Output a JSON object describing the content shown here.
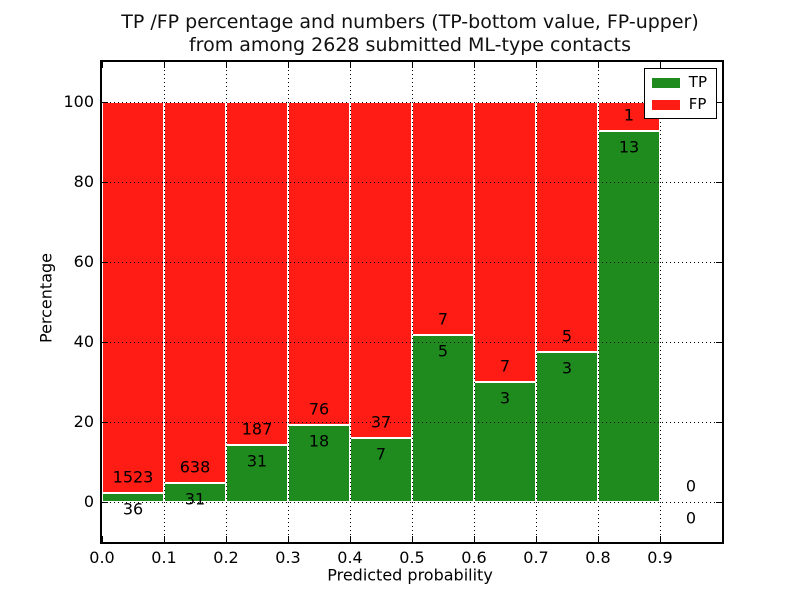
{
  "chart_data": {
    "type": "bar",
    "stacked": true,
    "title_line1": "TP /FP percentage and numbers (TP-bottom value, FP-upper)",
    "title_line2": "from among 2628 submitted ML-type contacts",
    "total_contacts": 2628,
    "xlabel": "Predicted probability",
    "ylabel": "Percentage",
    "x_ticks": [
      "0.0",
      "0.1",
      "0.2",
      "0.3",
      "0.4",
      "0.5",
      "0.6",
      "0.7",
      "0.8",
      "0.9"
    ],
    "y_ticks": [
      0,
      20,
      40,
      60,
      80,
      100
    ],
    "xlim": [
      0.0,
      1.0
    ],
    "ylim": [
      -10,
      110
    ],
    "grid": "dotted",
    "legend_position": "upper-right",
    "colors": {
      "tp": "#1f8b1f",
      "fp": "#ff1c14",
      "bar_edge": "#ffffff"
    },
    "legend": [
      {
        "label": "TP",
        "color": "#1f8b1f"
      },
      {
        "label": "FP",
        "color": "#ff1c14"
      }
    ],
    "bins": [
      {
        "range": "0.0-0.1",
        "tp": 36,
        "fp": 1523,
        "tp_pct": 2.31,
        "fp_pct": 97.69
      },
      {
        "range": "0.1-0.2",
        "tp": 31,
        "fp": 638,
        "tp_pct": 4.63,
        "fp_pct": 95.37
      },
      {
        "range": "0.2-0.3",
        "tp": 31,
        "fp": 187,
        "tp_pct": 14.22,
        "fp_pct": 85.78
      },
      {
        "range": "0.3-0.4",
        "tp": 18,
        "fp": 76,
        "tp_pct": 19.15,
        "fp_pct": 80.85
      },
      {
        "range": "0.4-0.5",
        "tp": 7,
        "fp": 37,
        "tp_pct": 15.91,
        "fp_pct": 84.09
      },
      {
        "range": "0.5-0.6",
        "tp": 5,
        "fp": 7,
        "tp_pct": 41.67,
        "fp_pct": 58.33
      },
      {
        "range": "0.6-0.7",
        "tp": 3,
        "fp": 7,
        "tp_pct": 30.0,
        "fp_pct": 70.0
      },
      {
        "range": "0.7-0.8",
        "tp": 3,
        "fp": 5,
        "tp_pct": 37.5,
        "fp_pct": 62.5
      },
      {
        "range": "0.8-0.9",
        "tp": 13,
        "fp": 1,
        "tp_pct": 92.86,
        "fp_pct": 7.14
      },
      {
        "range": "0.9-1.0",
        "tp": 0,
        "fp": 0,
        "tp_pct": 0,
        "fp_pct": 0
      }
    ]
  }
}
